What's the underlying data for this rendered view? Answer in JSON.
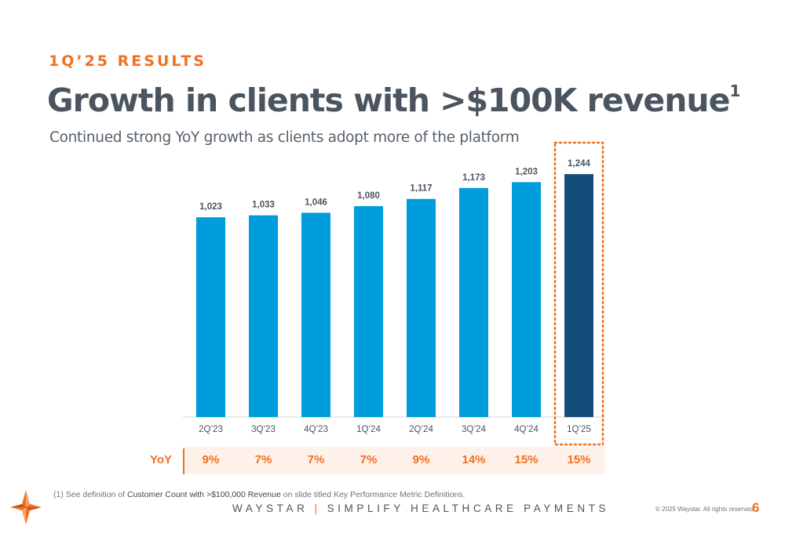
{
  "header": {
    "eyebrow": "1Q’25 RESULTS",
    "title": "Growth in clients with >$100K revenue",
    "title_footnote_marker": "1",
    "subtitle": "Continued strong YoY growth as clients adopt more of the platform"
  },
  "chart_data": {
    "type": "bar",
    "title": "",
    "xlabel": "",
    "ylabel": "",
    "categories": [
      "2Q’23",
      "3Q’23",
      "4Q’23",
      "1Q’24",
      "2Q’24",
      "3Q’24",
      "4Q’24",
      "1Q’25"
    ],
    "values": [
      1023,
      1033,
      1046,
      1080,
      1117,
      1173,
      1203,
      1244
    ],
    "value_labels": [
      "1,023",
      "1,033",
      "1,046",
      "1,080",
      "1,117",
      "1,173",
      "1,203",
      "1,244"
    ],
    "highlight_index": 7,
    "colors": {
      "bar": "#009ddc",
      "highlight": "#134e7b",
      "highlight_outline": "#f36f21",
      "axis": "#cfd3d6",
      "label": "#4a5560"
    },
    "grid": false,
    "legend": "none"
  },
  "yoy": {
    "label": "YoY",
    "values": [
      "9%",
      "7%",
      "7%",
      "7%",
      "9%",
      "14%",
      "15%",
      "15%"
    ]
  },
  "footer": {
    "footnote_prefix": "(1)  See definition of ",
    "footnote_strong": "Customer Count with >$100,000 Revenue",
    "footnote_suffix": " on slide titled Key Performance Metric Definitions.",
    "brand_left": "WAYSTAR",
    "brand_sep": "|",
    "brand_right": "SIMPLIFY HEALTHCARE PAYMENTS",
    "copyright": "© 2025 Waystar. All rights reserved.",
    "page_number": "6"
  },
  "logo": {
    "icon": "waystar-star-icon",
    "color": "#f36f21"
  }
}
